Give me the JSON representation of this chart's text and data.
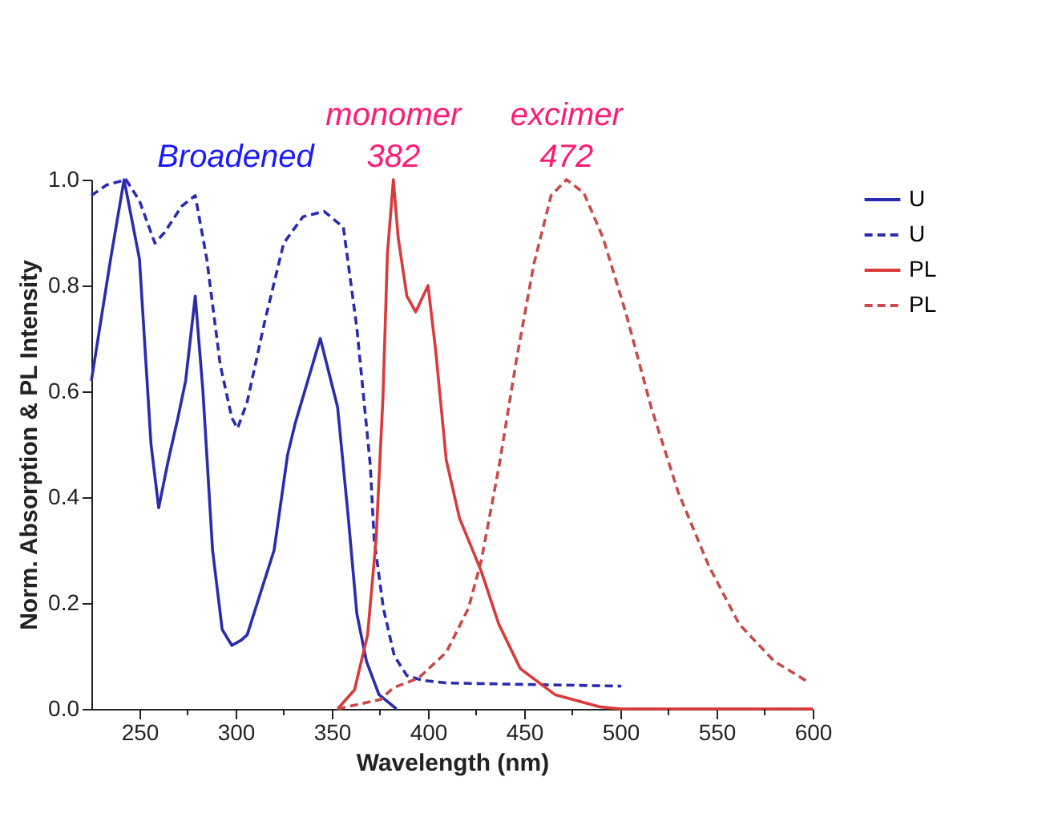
{
  "chart_data": {
    "type": "line",
    "xlabel": "Wavelength (nm)",
    "ylabel": "Norm. Absorption & PL Intensity",
    "xlim": [
      225,
      600
    ],
    "xticks": [
      250,
      {
        "value": 275,
        "label": null
      },
      300,
      {
        "value": 325,
        "label": null
      },
      350,
      {
        "value": 375,
        "label": null
      },
      400,
      {
        "value": 425,
        "label": null
      },
      450,
      {
        "value": 475,
        "label": null
      },
      500,
      {
        "value": 525,
        "label": null
      },
      550,
      {
        "value": 575,
        "label": null
      },
      600
    ],
    "ylim": [
      0,
      1.0
    ],
    "yticks": [
      {
        "value": 0,
        "label": "0.0"
      },
      0.2,
      0.4,
      0.6,
      0.8,
      {
        "value": 1,
        "label": "1.0"
      }
    ],
    "grid": false,
    "legend": "top right",
    "marker": "none",
    "annotations": [
      "Broadened",
      {
        "text": "monomer\n382",
        "x": 382,
        "y": 1.0
      },
      {
        "text": "excimer\n472",
        "x": 472,
        "y": 1.0
      }
    ],
    "series": [
      {
        "name": "U",
        "color": "#2b2bb0",
        "line_style": "solid",
        "x": [
          225,
          235,
          242,
          250,
          256,
          260,
          265,
          270,
          274,
          279,
          283,
          288,
          293,
          298,
          303,
          306,
          320,
          327,
          331,
          344,
          353,
          358.6,
          363,
          368,
          374.5,
          383.6
        ],
        "values": [
          0.62,
          0.85,
          1.0,
          0.85,
          0.5,
          0.38,
          0.47,
          0.55,
          0.62,
          0.78,
          0.6,
          0.3,
          0.15,
          0.12,
          0.13,
          0.14,
          0.3,
          0.48,
          0.54,
          0.7,
          0.57,
          0.36,
          0.18,
          0.09,
          0.027,
          0
        ]
      },
      {
        "name": "U",
        "color": "#2b2bb0",
        "line_style": "dashed",
        "x": [
          225,
          233,
          243,
          250,
          258,
          263,
          272,
          279,
          285,
          292,
          298,
          301,
          306,
          315,
          325,
          335,
          346,
          356,
          363,
          370,
          372,
          376.8,
          382.5,
          389,
          397,
          409.5,
          500.5
        ],
        "values": [
          0.97,
          0.99,
          1.0,
          0.96,
          0.88,
          0.9,
          0.95,
          0.97,
          0.85,
          0.65,
          0.55,
          0.53,
          0.58,
          0.73,
          0.88,
          0.93,
          0.94,
          0.91,
          0.72,
          0.46,
          0.32,
          0.19,
          0.1,
          0.063,
          0.054,
          0.049,
          0.043
        ]
      },
      {
        "name": "PL",
        "color": "#d93a3a",
        "line_style": "solid",
        "x": [
          353,
          361.8,
          368.6,
          373,
          376.6,
          378.9,
          382,
          384.5,
          389,
          393.6,
          400,
          403.9,
          409.5,
          416.4,
          427.7,
          436.8,
          448,
          466,
          489,
          500,
          600
        ],
        "values": [
          0,
          0.036,
          0.14,
          0.32,
          0.59,
          0.86,
          1.0,
          0.89,
          0.78,
          0.75,
          0.8,
          0.68,
          0.47,
          0.36,
          0.26,
          0.16,
          0.076,
          0.027,
          0.004,
          0,
          0
        ]
      },
      {
        "name": "PL",
        "color": "#c84a4a",
        "line_style": "dashed",
        "x": [
          353,
          375.5,
          382,
          395,
          409.5,
          421,
          427.7,
          437,
          446,
          455,
          464,
          472,
          481,
          491,
          502.7,
          516,
          530,
          546,
          561.8,
          580,
          598
        ],
        "values": [
          0,
          0.018,
          0.04,
          0.058,
          0.107,
          0.19,
          0.28,
          0.46,
          0.66,
          0.84,
          0.97,
          1.0,
          0.975,
          0.89,
          0.75,
          0.57,
          0.41,
          0.27,
          0.16,
          0.09,
          0.05
        ]
      }
    ]
  }
}
